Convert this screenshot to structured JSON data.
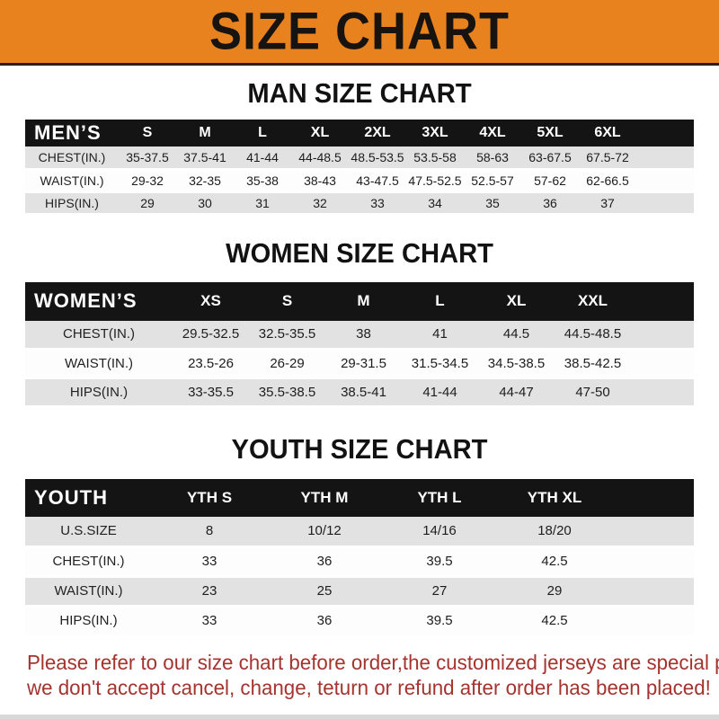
{
  "banner": {
    "title": "SIZE CHART"
  },
  "colors": {
    "banner_bg": "#E8821E",
    "table_header_bg": "#141414",
    "stripe_gray": "#E2E2E2",
    "footer_red": "#A5332E"
  },
  "sections": [
    {
      "id": "men",
      "title": "MAN SIZE CHART",
      "corner_label": "MEN’S",
      "columns": [
        "S",
        "M",
        "L",
        "XL",
        "2XL",
        "3XL",
        "4XL",
        "5XL",
        "6XL"
      ],
      "rows": [
        {
          "label": "CHEST(IN.)",
          "values": [
            "35-37.5",
            "37.5-41",
            "41-44",
            "44-48.5",
            "48.5-53.5",
            "53.5-58",
            "58-63",
            "63-67.5",
            "67.5-72"
          ]
        },
        {
          "label": "WAIST(IN.)",
          "values": [
            "29-32",
            "32-35",
            "35-38",
            "38-43",
            "43-47.5",
            "47.5-52.5",
            "52.5-57",
            "57-62",
            "62-66.5"
          ]
        },
        {
          "label": "HIPS(IN.)",
          "values": [
            "29",
            "30",
            "31",
            "32",
            "33",
            "34",
            "35",
            "36",
            "37"
          ]
        }
      ]
    },
    {
      "id": "women",
      "title": "WOMEN SIZE CHART",
      "corner_label": "WOMEN’S",
      "columns": [
        "XS",
        "S",
        "M",
        "L",
        "XL",
        "XXL"
      ],
      "rows": [
        {
          "label": "CHEST(IN.)",
          "values": [
            "29.5-32.5",
            "32.5-35.5",
            "38",
            "41",
            "44.5",
            "44.5-48.5"
          ]
        },
        {
          "label": "WAIST(IN.)",
          "values": [
            "23.5-26",
            "26-29",
            "29-31.5",
            "31.5-34.5",
            "34.5-38.5",
            "38.5-42.5"
          ]
        },
        {
          "label": "HIPS(IN.)",
          "values": [
            "33-35.5",
            "35.5-38.5",
            "38.5-41",
            "41-44",
            "44-47",
            "47-50"
          ]
        }
      ]
    },
    {
      "id": "youth",
      "title": "YOUTH SIZE CHART",
      "corner_label": "YOUTH",
      "columns": [
        "YTH S",
        "YTH M",
        "YTH L",
        "YTH XL"
      ],
      "rows": [
        {
          "label": "U.S.SIZE",
          "values": [
            "8",
            "10/12",
            "14/16",
            "18/20"
          ]
        },
        {
          "label": "CHEST(IN.)",
          "values": [
            "33",
            "36",
            "39.5",
            "42.5"
          ]
        },
        {
          "label": "WAIST(IN.)",
          "values": [
            "23",
            "25",
            "27",
            "29"
          ]
        },
        {
          "label": "HIPS(IN.)",
          "values": [
            "33",
            "36",
            "39.5",
            "42.5"
          ]
        }
      ]
    }
  ],
  "footer": {
    "line1": "Please refer to our size chart before order,the customized jerseys are special products,",
    "line2": "we don't accept cancel, change, teturn or refund after order has been placed!"
  }
}
